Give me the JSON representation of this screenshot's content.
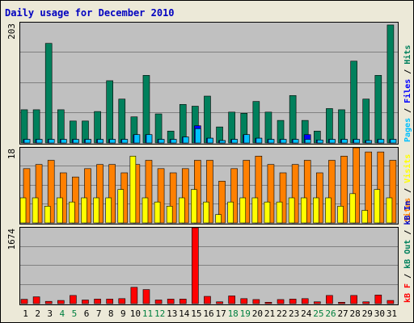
{
  "title": "Daily usage for December 2010",
  "colors": {
    "background": "#ffffff",
    "frame_bg": "#ece9d8",
    "plot_bg": "#c0c0c0",
    "title": "#0000c0",
    "hits": "#00805c",
    "files": "#0000ff",
    "pages": "#00c0ff",
    "visits": "#ffff00",
    "sites": "#ff8000",
    "kb_in": "#0000c0",
    "kb_out": "#00805c",
    "kb_f": "#ff0000",
    "weekend_label": "#008040"
  },
  "chart_data": [
    {
      "type": "bar",
      "panel": "hits-files-pages",
      "ylabel_scale": "203",
      "ylim": [
        0,
        203
      ],
      "legend": [
        {
          "text": "Pages",
          "color_key": "pages"
        },
        {
          "text": "Files",
          "color_key": "files"
        },
        {
          "text": "Hits",
          "color_key": "hits"
        }
      ],
      "categories": [
        "1",
        "2",
        "3",
        "4",
        "5",
        "6",
        "7",
        "8",
        "9",
        "10",
        "11",
        "12",
        "13",
        "14",
        "15",
        "16",
        "17",
        "18",
        "19",
        "20",
        "21",
        "22",
        "23",
        "24",
        "25",
        "26",
        "27",
        "28",
        "29",
        "30",
        "31"
      ],
      "series": [
        {
          "name": "Hits",
          "color_key": "hits",
          "values": [
            56,
            56,
            168,
            56,
            37,
            37,
            53,
            105,
            74,
            44,
            114,
            49,
            20,
            65,
            62,
            79,
            27,
            52,
            50,
            70,
            52,
            38,
            80,
            38,
            20,
            58,
            56,
            138,
            74,
            114,
            199
          ]
        },
        {
          "name": "Files",
          "color_key": "files",
          "values": [
            6,
            6,
            6,
            6,
            6,
            6,
            6,
            6,
            6,
            14,
            14,
            6,
            6,
            10,
            29,
            8,
            4,
            6,
            14,
            8,
            6,
            6,
            6,
            14,
            5,
            6,
            6,
            6,
            4,
            6,
            6
          ]
        },
        {
          "name": "Pages",
          "color_key": "pages",
          "values": [
            6,
            6,
            6,
            6,
            6,
            6,
            6,
            6,
            6,
            14,
            14,
            6,
            6,
            10,
            24,
            8,
            4,
            6,
            14,
            8,
            6,
            6,
            6,
            6,
            5,
            6,
            6,
            6,
            4,
            6,
            6
          ]
        }
      ]
    },
    {
      "type": "bar",
      "panel": "sites-visits",
      "ylabel_scale": "18",
      "ylim": [
        0,
        18
      ],
      "legend": [
        {
          "text": "Sites",
          "color_key": "sites"
        },
        {
          "text": "Visits",
          "color_key": "visits"
        }
      ],
      "categories": [
        "1",
        "2",
        "3",
        "4",
        "5",
        "6",
        "7",
        "8",
        "9",
        "10",
        "11",
        "12",
        "13",
        "14",
        "15",
        "16",
        "17",
        "18",
        "19",
        "20",
        "21",
        "22",
        "23",
        "24",
        "25",
        "26",
        "27",
        "28",
        "29",
        "30",
        "31"
      ],
      "series": [
        {
          "name": "Sites",
          "color_key": "sites",
          "values": [
            13,
            14,
            15,
            12,
            11,
            13,
            14,
            14,
            12,
            14,
            15,
            13,
            12,
            13,
            15,
            15,
            10,
            13,
            15,
            16,
            14,
            12,
            14,
            15,
            12,
            15,
            16,
            18,
            17,
            17,
            15
          ]
        },
        {
          "name": "Visits",
          "color_key": "visits",
          "values": [
            6,
            6,
            4,
            6,
            5,
            6,
            6,
            6,
            8,
            16,
            6,
            5,
            4,
            6,
            8,
            5,
            2,
            5,
            6,
            6,
            5,
            5,
            6,
            6,
            6,
            6,
            4,
            7,
            3,
            8,
            6
          ]
        }
      ]
    },
    {
      "type": "bar",
      "panel": "kbytes",
      "ylabel_scale": "1674",
      "ylim": [
        0,
        1674
      ],
      "legend": [
        {
          "text": "kB F",
          "color_key": "kb_f"
        },
        {
          "text": "kB Out",
          "color_key": "kb_out"
        },
        {
          "text": "kB In",
          "color_key": "kb_in"
        }
      ],
      "categories": [
        "1",
        "2",
        "3",
        "4",
        "5",
        "6",
        "7",
        "8",
        "9",
        "10",
        "11",
        "12",
        "13",
        "14",
        "15",
        "16",
        "17",
        "18",
        "19",
        "20",
        "21",
        "22",
        "23",
        "24",
        "25",
        "26",
        "27",
        "28",
        "29",
        "30",
        "31"
      ],
      "series": [
        {
          "name": "kB F",
          "color_key": "kb_f",
          "values": [
            95,
            150,
            50,
            70,
            180,
            80,
            100,
            100,
            110,
            360,
            310,
            80,
            100,
            100,
            1674,
            160,
            40,
            170,
            110,
            90,
            30,
            90,
            100,
            110,
            40,
            180,
            30,
            180,
            40,
            190,
            70
          ]
        }
      ]
    }
  ],
  "x_axis": {
    "labels": [
      "1",
      "2",
      "3",
      "4",
      "5",
      "6",
      "7",
      "8",
      "9",
      "10",
      "11",
      "12",
      "13",
      "14",
      "15",
      "16",
      "17",
      "18",
      "19",
      "20",
      "21",
      "22",
      "23",
      "24",
      "25",
      "26",
      "27",
      "28",
      "29",
      "30",
      "31"
    ],
    "weekend_days": [
      "4",
      "5",
      "11",
      "12",
      "18",
      "19",
      "25",
      "26"
    ]
  }
}
